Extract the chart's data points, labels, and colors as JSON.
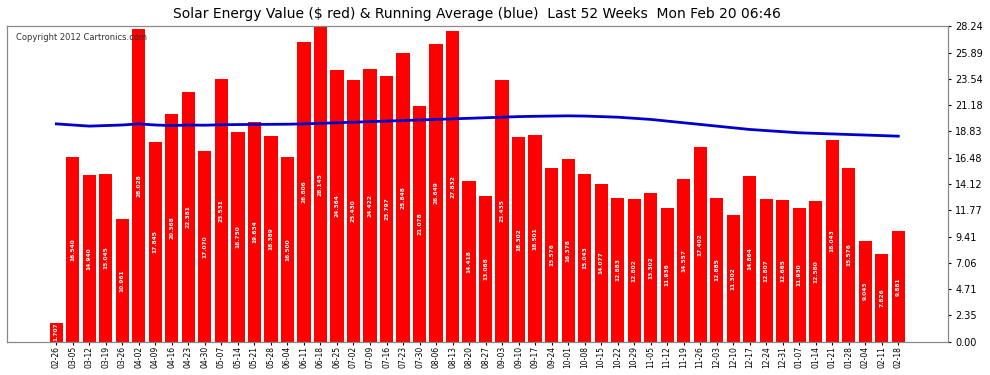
{
  "title": "Solar Energy Value ($ red) & Running Average (blue)  Last 52 Weeks  Mon Feb 20 06:46",
  "copyright": "Copyright 2012 Cartronics.com",
  "bar_color": "#ff0000",
  "avg_line_color": "#0000cc",
  "background_color": "#ffffff",
  "grid_color": "#aaaaaa",
  "ylabel_right": [
    "0.00",
    "2.35",
    "4.71",
    "7.06",
    "9.41",
    "11.77",
    "14.12",
    "16.48",
    "18.83",
    "21.18",
    "23.54",
    "25.89",
    "28.24"
  ],
  "ylim": [
    0,
    28.24
  ],
  "dates": [
    "02-26",
    "03-05",
    "03-12",
    "03-19",
    "03-26",
    "04-02",
    "04-09",
    "04-16",
    "04-23",
    "04-30",
    "05-07",
    "05-14",
    "05-21",
    "05-28",
    "06-04",
    "06-11",
    "06-18",
    "06-25",
    "07-02",
    "07-09",
    "07-16",
    "07-23",
    "07-30",
    "08-06",
    "08-13",
    "08-20",
    "08-27",
    "09-03",
    "09-10",
    "09-17",
    "09-24",
    "10-01",
    "10-08",
    "10-15",
    "10-22",
    "10-29",
    "11-05",
    "11-12",
    "11-19",
    "11-26",
    "12-03",
    "12-10",
    "12-17",
    "12-24",
    "12-31",
    "01-07",
    "01-14",
    "01-21",
    "01-28",
    "02-04",
    "02-11",
    "02-18"
  ],
  "values": [
    1.707,
    16.54,
    14.94,
    15.045,
    10.961,
    28.028,
    17.845,
    20.368,
    22.381,
    17.07,
    23.531,
    18.75,
    19.634,
    18.389,
    16.5,
    26.806,
    28.145,
    24.364,
    23.43,
    24.422,
    23.797,
    25.848,
    21.078,
    26.649,
    27.832,
    14.418,
    13.068,
    23.435,
    18.302,
    18.501,
    15.576,
    16.378,
    15.043,
    14.077,
    12.883,
    12.802,
    13.302,
    11.936,
    14.557,
    17.402,
    12.885,
    11.302,
    14.864,
    12.807,
    12.665,
    11.93,
    12.58,
    18.043,
    15.576,
    9.043,
    7.826,
    9.881
  ],
  "running_avg": [
    19.5,
    19.4,
    19.3,
    19.35,
    19.4,
    19.5,
    19.4,
    19.35,
    19.4,
    19.38,
    19.42,
    19.44,
    19.45,
    19.46,
    19.47,
    19.5,
    19.55,
    19.6,
    19.65,
    19.7,
    19.75,
    19.8,
    19.85,
    19.9,
    19.95,
    20.0,
    20.05,
    20.1,
    20.15,
    20.18,
    20.2,
    20.22,
    20.2,
    20.15,
    20.1,
    20.0,
    19.9,
    19.75,
    19.6,
    19.45,
    19.3,
    19.15,
    19.0,
    18.9,
    18.8,
    18.7,
    18.65,
    18.6,
    18.55,
    18.5,
    18.45,
    18.4
  ]
}
